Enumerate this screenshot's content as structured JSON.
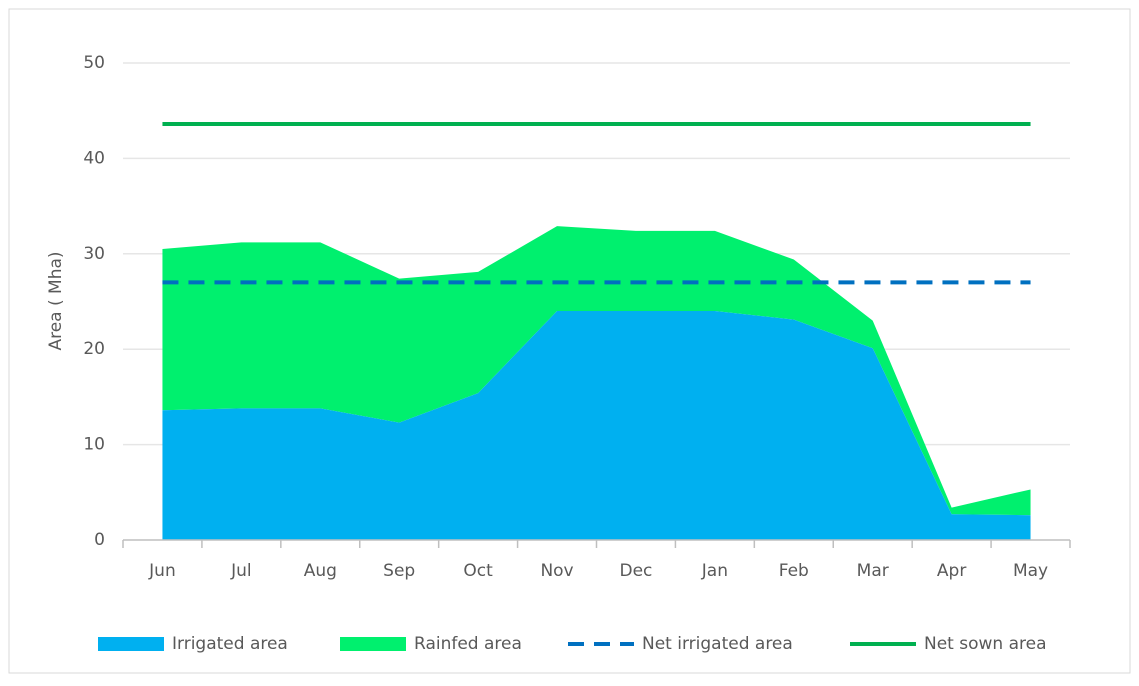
{
  "chart_data": {
    "type": "stacked_area",
    "y_label": "Area ( Mha)",
    "categories": [
      "Jun",
      "Jul",
      "Aug",
      "Sep",
      "Oct",
      "Nov",
      "Dec",
      "Jan",
      "Feb",
      "Mar",
      "Apr",
      "May"
    ],
    "series": [
      {
        "name": "Irrigated area",
        "color": "#00b0f0",
        "kind": "area",
        "values": [
          13.6,
          13.8,
          13.8,
          12.3,
          15.4,
          24.0,
          24.0,
          24.0,
          23.1,
          20.1,
          2.7,
          2.6
        ]
      },
      {
        "name": "Rainfed area",
        "color": "#00f06e",
        "kind": "area",
        "values": [
          16.9,
          17.4,
          17.4,
          15.1,
          12.7,
          8.9,
          8.4,
          8.4,
          6.3,
          2.9,
          0.7,
          2.7
        ]
      },
      {
        "name": "Net irrigated area",
        "color": "#0070c0",
        "kind": "line",
        "dashed": true,
        "values": [
          27,
          27,
          27,
          27,
          27,
          27,
          27,
          27,
          27,
          27,
          27,
          27
        ]
      },
      {
        "name": "Net sown area",
        "color": "#00b050",
        "kind": "line",
        "dashed": false,
        "values": [
          43.6,
          43.6,
          43.6,
          43.6,
          43.6,
          43.6,
          43.6,
          43.6,
          43.6,
          43.6,
          43.6,
          43.6
        ]
      }
    ],
    "ylim": [
      0,
      50
    ],
    "yticks": [
      0,
      10,
      20,
      30,
      40,
      50
    ],
    "grid": true,
    "legend": "bottom"
  }
}
